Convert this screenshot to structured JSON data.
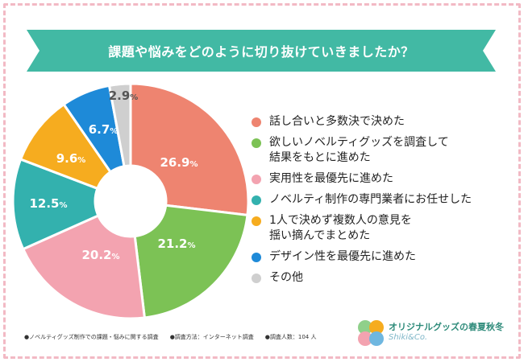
{
  "title": "課題や悩みをどのように切り抜けていきましたか？",
  "chart_data": {
    "type": "pie",
    "categories": [
      "話し合いと多数決で決めた",
      "欲しいノベルティグッズを調査して\n結果をもとに進めた",
      "実用性を最優先に進めた",
      "ノベルティ制作の専門業者にお任せした",
      "1人で決めず複数人の意見を\n揺い摘んでまとめた",
      "デザイン性を最優先に進めた",
      "その他"
    ],
    "values": [
      26.9,
      21.2,
      20.2,
      12.5,
      9.6,
      6.7,
      2.9
    ],
    "labels": [
      "26.9",
      "21.2",
      "20.2",
      "12.5",
      "9.6",
      "6.7",
      "2.9"
    ],
    "unit": "%",
    "colors": [
      "#ee8470",
      "#7cc255",
      "#f3a3b0",
      "#33b1ae",
      "#f6ac1f",
      "#1e8ad8",
      "#cfcfcf"
    ],
    "donut": true,
    "legend_position": "right"
  },
  "footer": {
    "note1": "●ノベルティグッズ制作での課題・悩みに関する調査",
    "note2": "●調査方法：インターネット調査",
    "note3": "●調査人数：104 人"
  },
  "logo": {
    "brand": "オリジナルグッズの春夏秋冬",
    "sub": "Shiki&Co."
  },
  "colors": {
    "banner": "#42b9a4",
    "border": "#f2b9c4"
  }
}
